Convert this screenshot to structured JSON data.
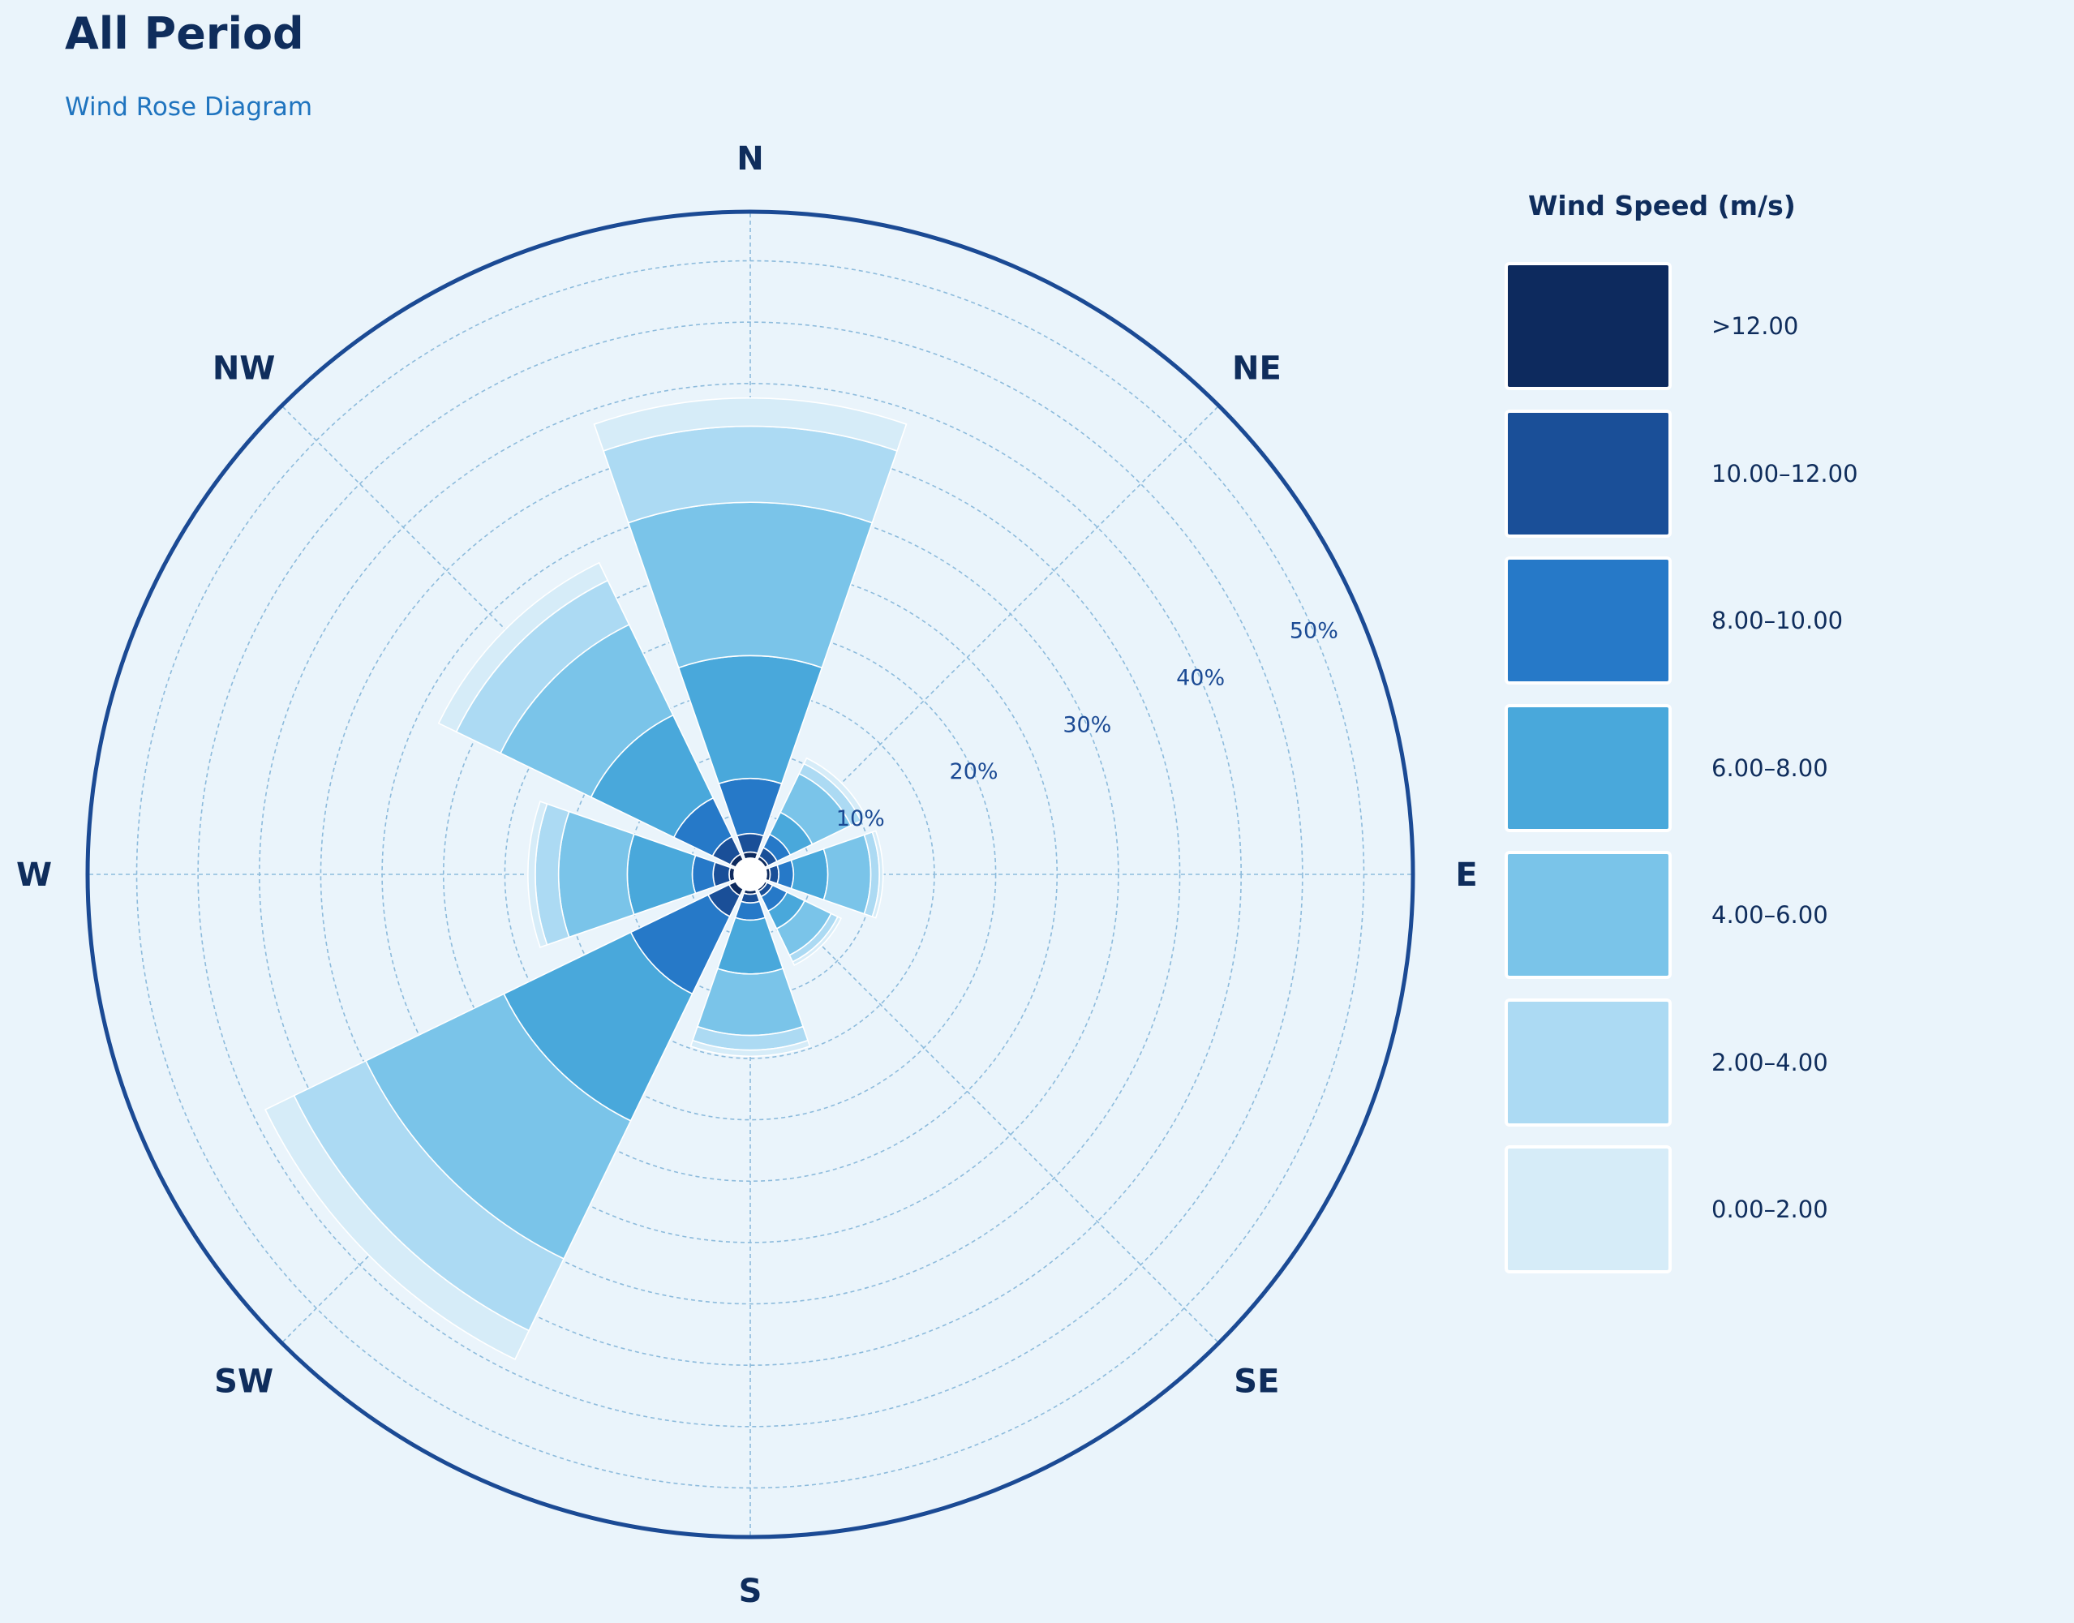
{
  "title": "All Period",
  "subtitle": "Wind Rose Diagram",
  "chart_data": {
    "type": "bar",
    "chart_style": "wind-rose (stacked polar bars)",
    "directions": [
      "N",
      "NE",
      "E",
      "SE",
      "S",
      "SW",
      "W",
      "NW"
    ],
    "radial_tick_labels": [
      "10%",
      "20%",
      "30%",
      "40%",
      "50%"
    ],
    "radial_ticks": [
      10,
      20,
      30,
      40,
      50
    ],
    "rmax": 54,
    "grid": true,
    "legend_placement": "right",
    "legend_title": "Wind Speed (m/s)",
    "unit": "%",
    "series": [
      {
        "name": ">12.00",
        "color": "#0d2a5e",
        "values": [
          0.5,
          0.3,
          0.3,
          0.2,
          0.3,
          0.6,
          0.4,
          0.5
        ]
      },
      {
        "name": "10.00–12.00",
        "color": "#1a4f98",
        "values": [
          1.5,
          0.8,
          0.7,
          0.5,
          0.7,
          1.9,
          1.3,
          1.6
        ]
      },
      {
        "name": "8.00–10.00",
        "color": "#2679c8",
        "values": [
          4.5,
          1.2,
          1.2,
          1.3,
          1.4,
          7.0,
          1.7,
          3.5
        ]
      },
      {
        "name": "6.00–8.00",
        "color": "#49a8db",
        "values": [
          10.0,
          2.0,
          2.8,
          1.6,
          4.4,
          11.5,
          5.3,
          7.5
        ]
      },
      {
        "name": "4.00–6.00",
        "color": "#7ac4e9",
        "values": [
          12.5,
          3.5,
          3.5,
          2.4,
          5.0,
          12.5,
          5.6,
          8.2
        ]
      },
      {
        "name": "2.00–4.00",
        "color": "#acdaf3",
        "values": [
          6.2,
          0.9,
          0.7,
          0.6,
          1.2,
          6.5,
          1.9,
          4.0
        ]
      },
      {
        "name": "0.00–2.00",
        "color": "#d6ecf8",
        "values": [
          2.3,
          0.5,
          0.3,
          0.3,
          0.5,
          2.6,
          0.6,
          1.6
        ]
      }
    ]
  },
  "colors": {
    "background": "#eaf4fb",
    "outer_ring": "#1b4a94",
    "grid": "#8dbbdc",
    "text_dark": "#0f2d5c",
    "tick_text": "#1b4a94",
    "subtitle": "#1f74bf"
  }
}
